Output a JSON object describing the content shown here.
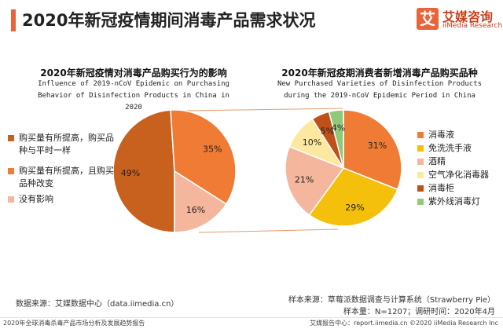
{
  "header": {
    "title": "2020年新冠疫情期间消毒产品需求状况"
  },
  "logo": {
    "mark": "艾",
    "name_cn": "艾媒咨询",
    "name_en": "iiMedia Research"
  },
  "colors": {
    "accent": "#e8643a",
    "logo_bg": "#e8643a",
    "connector": "#e89a6a",
    "left": [
      "#c8601e",
      "#ef7b35",
      "#f4b69c"
    ],
    "right": [
      "#ef7b35",
      "#f5c00c",
      "#f4b69c",
      "#fde8a0",
      "#c0501a",
      "#8fc97a"
    ]
  },
  "chart_data": [
    {
      "type": "pie",
      "title": "2020年新冠疫情对消毒产品购买行为的影响",
      "subtitle_lines": [
        "Influence of 2019-nCoV Epidemic on Purchasing",
        "Behavior of Disinfection Products in China in",
        "2020"
      ],
      "slices": [
        {
          "label": "购买量有所提高，购买品种与平时一样",
          "value": 49,
          "text": "49%"
        },
        {
          "label": "购买量有所提高，且购买品种改变",
          "value": 35,
          "text": "35%"
        },
        {
          "label": "没有影响",
          "value": 16,
          "text": "16%"
        }
      ]
    },
    {
      "type": "pie",
      "title": "2020年新冠疫期消费者新增消毒产品购买品种",
      "subtitle_lines": [
        "New Purchased Varieties of Disinfection Products",
        "during the 2019-nCoV Epidemic Period in China"
      ],
      "slices": [
        {
          "label": "消毒液",
          "value": 31,
          "text": "31%"
        },
        {
          "label": "免洗洗手液",
          "value": 29,
          "text": "29%"
        },
        {
          "label": "酒精",
          "value": 21,
          "text": "21%"
        },
        {
          "label": "空气净化消毒器",
          "value": 10,
          "text": "10%"
        },
        {
          "label": "消毒柜",
          "value": 5,
          "text": "5%"
        },
        {
          "label": "紫外线消毒灯",
          "value": 4,
          "text": "4%"
        }
      ]
    }
  ],
  "notes": {
    "data_source": "数据来源：艾媒数据中心（data.iimedia.cn）",
    "sample_source": "样本来源：草莓派数据调查与计算系统（Strawberry Pie）",
    "sample_size": "样本量：N=1207；调研时间：2020年4月"
  },
  "footer": {
    "left": "2020年全球消毒杀毒产品市场分析及发展趋势报告",
    "right": "艾媒报告中心：report.iimedia.cn  ©2020  iiMedia Research Inc"
  }
}
